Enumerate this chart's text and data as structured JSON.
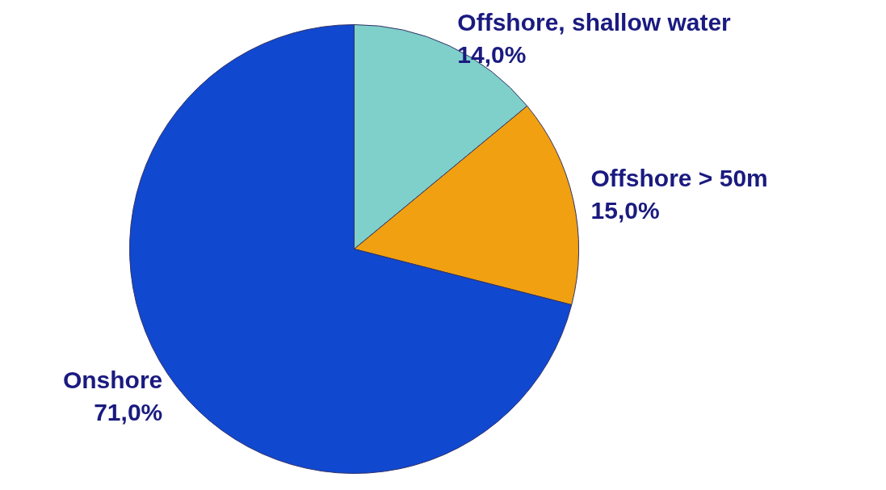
{
  "chart_data": {
    "type": "pie",
    "categories": [
      "Offshore, shallow water",
      "Offshore > 50m",
      "Onshore"
    ],
    "values": [
      14,
      15,
      71
    ],
    "colors": [
      "#7fcfca",
      "#f0a010",
      "#1048d0"
    ],
    "value_labels": [
      "14,0%",
      "15,0%",
      "71,0%"
    ],
    "legend": false
  }
}
